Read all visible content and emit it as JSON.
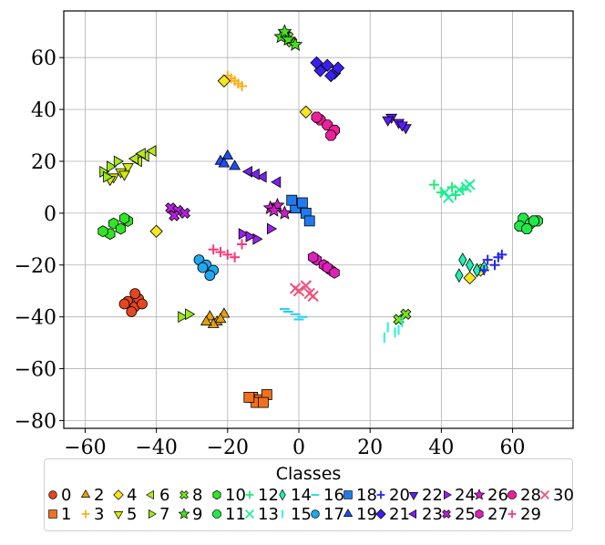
{
  "chart_data": {
    "type": "scatter",
    "title": "",
    "xlabel": "",
    "ylabel": "",
    "xlim": [
      -66,
      77
    ],
    "ylim": [
      -83,
      78
    ],
    "grid": true,
    "x_ticks": [
      -60,
      -40,
      -20,
      0,
      20,
      40,
      60
    ],
    "y_ticks": [
      -80,
      -60,
      -40,
      -20,
      0,
      20,
      40,
      60
    ],
    "x_tick_labels": [
      "−60",
      "−40",
      "−20",
      "0",
      "20",
      "40",
      "60"
    ],
    "y_tick_labels": [
      "−80",
      "−60",
      "−40",
      "−20",
      "0",
      "20",
      "40",
      "60"
    ],
    "legend_title": "Classes",
    "legend_position": "bottom-center, below axes",
    "series": [
      {
        "name": "0",
        "color": "#e8451e",
        "marker": "circle",
        "x": [
          -48,
          -46,
          -45,
          -47,
          -49,
          -44,
          -46
        ],
        "y": [
          -34,
          -36,
          -33,
          -38,
          -35,
          -35,
          -31
        ]
      },
      {
        "name": "1",
        "color": "#f2711c",
        "marker": "square",
        "x": [
          -13,
          -11,
          -9,
          -12,
          -10,
          -14
        ],
        "y": [
          -71,
          -72,
          -70,
          -73,
          -73,
          -71
        ]
      },
      {
        "name": "2",
        "color": "#e3a00f",
        "marker": "triangle-up",
        "x": [
          -25,
          -23,
          -21,
          -24,
          -22,
          -26
        ],
        "y": [
          -40,
          -42,
          -39,
          -43,
          -41,
          -42
        ]
      },
      {
        "name": "3",
        "color": "#f5b21a",
        "marker": "plus",
        "x": [
          -20,
          -18,
          -16,
          -19,
          -17
        ],
        "y": [
          53,
          51,
          49,
          52,
          50
        ]
      },
      {
        "name": "4",
        "color": "#f7e51f",
        "marker": "diamond",
        "x": [
          -40,
          2,
          51,
          48,
          -21
        ],
        "y": [
          -7,
          39,
          -22,
          -25,
          51
        ]
      },
      {
        "name": "5",
        "color": "#d4e90f",
        "marker": "triangle-down",
        "x": [
          -52,
          -50,
          -48,
          -53,
          -49
        ],
        "y": [
          14,
          16,
          18,
          13,
          15
        ]
      },
      {
        "name": "6",
        "color": "#b8e81a",
        "marker": "triangle-left",
        "x": [
          -45,
          -43,
          -41,
          -46,
          -44
        ],
        "y": [
          20,
          22,
          24,
          21,
          23
        ]
      },
      {
        "name": "7",
        "color": "#9de81a",
        "marker": "triangle-right",
        "x": [
          -55,
          -53,
          -51,
          -54,
          -33,
          -31
        ],
        "y": [
          16,
          18,
          20,
          14,
          -40,
          -39
        ]
      },
      {
        "name": "8",
        "color": "#73e61b",
        "marker": "x-filled",
        "x": [
          -4,
          -2,
          -3,
          28,
          30
        ],
        "y": [
          69,
          66,
          68,
          -41,
          -39
        ]
      },
      {
        "name": "9",
        "color": "#46e01c",
        "marker": "star",
        "x": [
          -5,
          -3,
          -1,
          -4
        ],
        "y": [
          68,
          67,
          65,
          70
        ]
      },
      {
        "name": "10",
        "color": "#2fe622",
        "marker": "hexagon",
        "x": [
          -52,
          -50,
          -48,
          -53,
          -49,
          -55
        ],
        "y": [
          -4,
          -6,
          -3,
          -8,
          -2,
          -7
        ]
      },
      {
        "name": "11",
        "color": "#22e84a",
        "marker": "octagon",
        "x": [
          63,
          65,
          67,
          62,
          66,
          64
        ],
        "y": [
          -2,
          -4,
          -3,
          -5,
          -3,
          -6
        ]
      },
      {
        "name": "12",
        "color": "#22e876",
        "marker": "plus",
        "x": [
          40,
          43,
          46,
          38,
          44
        ],
        "y": [
          8,
          10,
          9,
          11,
          7
        ]
      },
      {
        "name": "13",
        "color": "#1ef09a",
        "marker": "x",
        "x": [
          42,
          45,
          48,
          41,
          47
        ],
        "y": [
          6,
          9,
          11,
          8,
          10
        ]
      },
      {
        "name": "14",
        "color": "#1ff0b0",
        "marker": "thin-diamond",
        "x": [
          46,
          48,
          50,
          45,
          52
        ],
        "y": [
          -18,
          -20,
          -22,
          -24,
          -21
        ]
      },
      {
        "name": "15",
        "color": "#20f5d8",
        "marker": "vline",
        "x": [
          25,
          27,
          29,
          24,
          28
        ],
        "y": [
          -44,
          -46,
          -42,
          -48,
          -45
        ]
      },
      {
        "name": "16",
        "color": "#1fd0f0",
        "marker": "hline",
        "x": [
          -3,
          -1,
          1,
          -4,
          0
        ],
        "y": [
          -38,
          -39,
          -40,
          -37,
          -41
        ]
      },
      {
        "name": "17",
        "color": "#1fa8f0",
        "marker": "circle",
        "x": [
          -28,
          -26,
          -24,
          -27,
          -25
        ],
        "y": [
          -18,
          -20,
          -22,
          -21,
          -24
        ]
      },
      {
        "name": "18",
        "color": "#1f7af0",
        "marker": "square",
        "x": [
          -1,
          1,
          2,
          -2,
          3
        ],
        "y": [
          2,
          4,
          0,
          5,
          -3
        ]
      },
      {
        "name": "19",
        "color": "#1f4df0",
        "marker": "triangle-up",
        "x": [
          -22,
          -20,
          -18,
          -21
        ],
        "y": [
          20,
          22,
          18,
          19
        ]
      },
      {
        "name": "20",
        "color": "#2525f0",
        "marker": "plus",
        "x": [
          53,
          55,
          57,
          52,
          56
        ],
        "y": [
          -18,
          -20,
          -16,
          -22,
          -17
        ]
      },
      {
        "name": "21",
        "color": "#3a1ff0",
        "marker": "diamond",
        "x": [
          6,
          8,
          10,
          5,
          11,
          9
        ],
        "y": [
          55,
          57,
          54,
          58,
          56,
          53
        ]
      },
      {
        "name": "22",
        "color": "#5a1ff0",
        "marker": "triangle-down",
        "x": [
          26,
          28,
          30,
          25,
          29
        ],
        "y": [
          37,
          35,
          33,
          36,
          34
        ]
      },
      {
        "name": "23",
        "color": "#7a1ff0",
        "marker": "triangle-left",
        "x": [
          -14,
          -10,
          -6,
          -12
        ],
        "y": [
          16,
          14,
          12,
          15
        ]
      },
      {
        "name": "24",
        "color": "#9b1ff0",
        "marker": "triangle-right",
        "x": [
          -16,
          -12,
          -8,
          -14
        ],
        "y": [
          -8,
          -10,
          -6,
          -9
        ]
      },
      {
        "name": "25",
        "color": "#b81fe0",
        "marker": "x-filled",
        "x": [
          -36,
          -34,
          -32,
          -35
        ],
        "y": [
          2,
          1,
          0,
          -1
        ]
      },
      {
        "name": "26",
        "color": "#cc1fc8",
        "marker": "star",
        "x": [
          -8,
          -6,
          -4,
          -7
        ],
        "y": [
          2,
          3,
          0,
          1
        ]
      },
      {
        "name": "27",
        "color": "#e01fba",
        "marker": "hexagon",
        "x": [
          5,
          7,
          9,
          4,
          8,
          10
        ],
        "y": [
          -18,
          -20,
          -22,
          -17,
          -21,
          -23
        ]
      },
      {
        "name": "28",
        "color": "#ee1f9a",
        "marker": "octagon",
        "x": [
          6,
          8,
          10,
          5,
          9
        ],
        "y": [
          36,
          34,
          32,
          37,
          30
        ]
      },
      {
        "name": "29",
        "color": "#f53a78",
        "marker": "plus",
        "x": [
          -24,
          -20,
          -16,
          -22,
          -18
        ],
        "y": [
          -14,
          -16,
          -12,
          -15,
          -17
        ]
      },
      {
        "name": "30",
        "color": "#f0507a",
        "marker": "x",
        "x": [
          0,
          2,
          4,
          -1,
          3
        ],
        "y": [
          -30,
          -28,
          -32,
          -29,
          -31
        ]
      }
    ]
  }
}
